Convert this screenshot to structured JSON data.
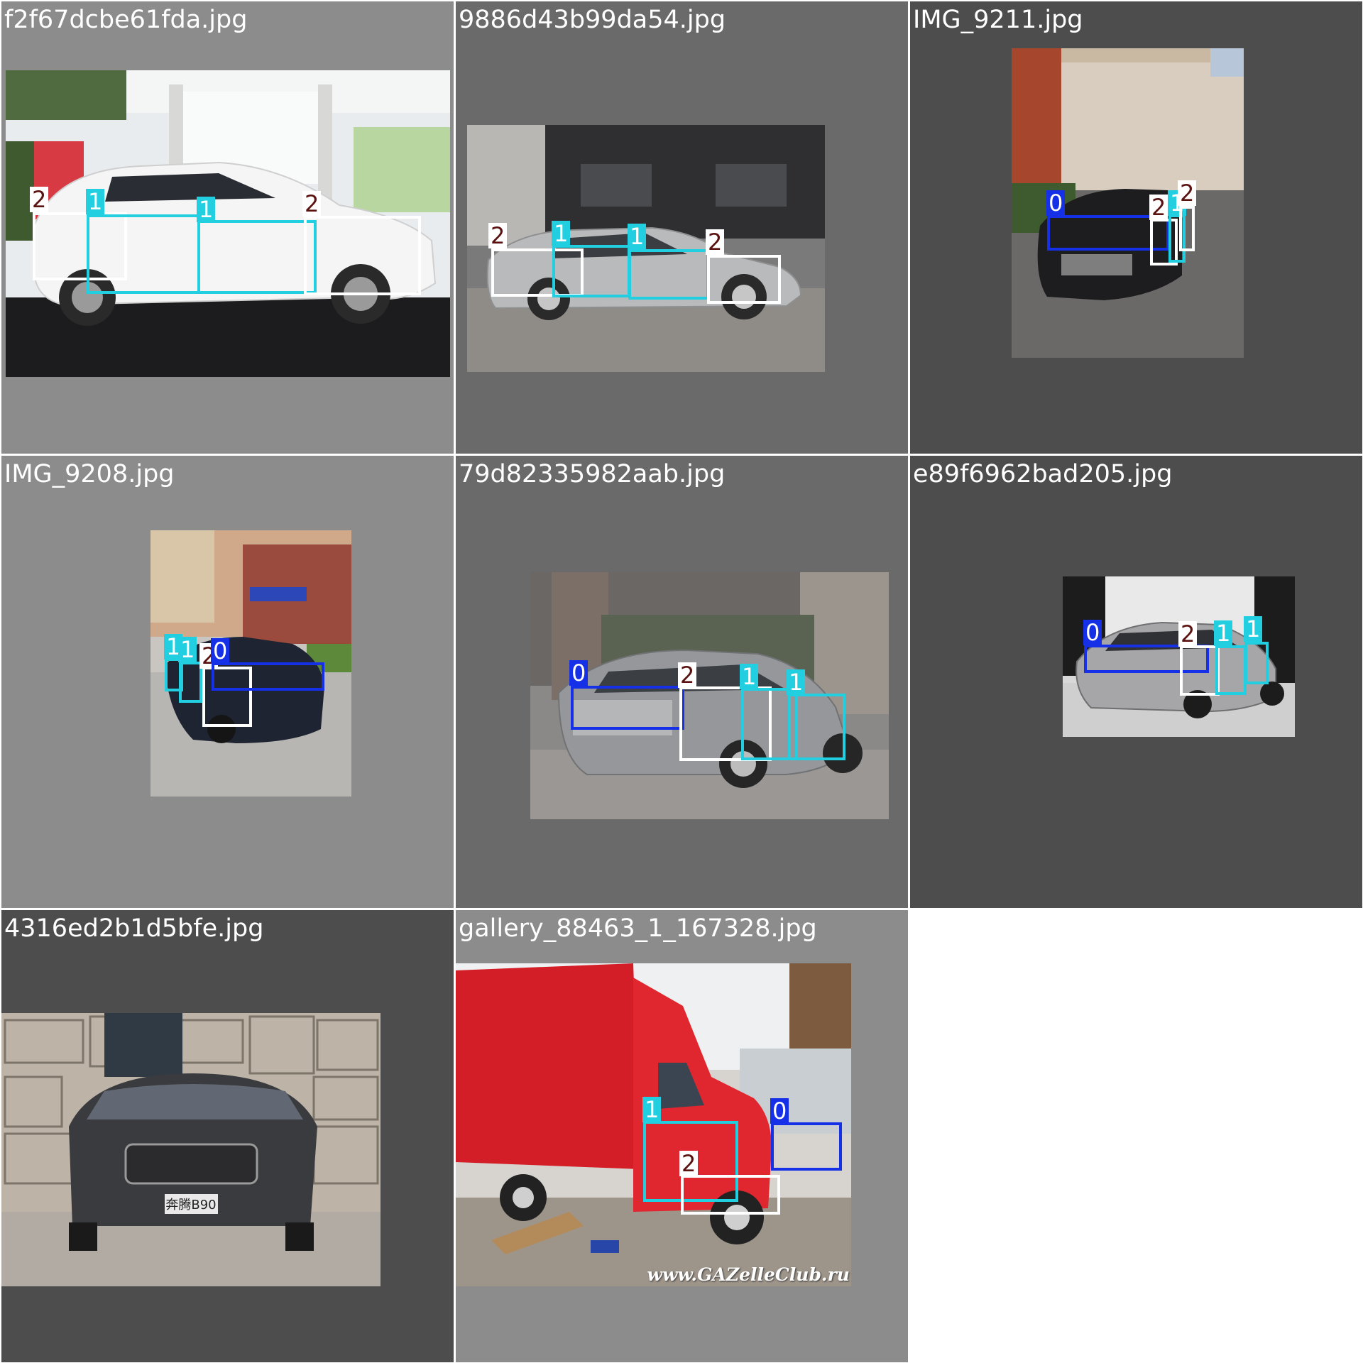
{
  "palette": {
    "class_colors": {
      "0": "#1530e6",
      "1": "#22cfe0",
      "2": "#ffffff"
    },
    "tag_text_colors": {
      "0": "#ffffff",
      "1": "#ffffff",
      "2": "#5a1210"
    },
    "tile_bg_light": "#8c8c8c",
    "tile_bg_mid": "#6a6a6a",
    "tile_bg_dark": "#4d4d4d",
    "empty_cell": "#ffffff",
    "filename_color": "#ffffff"
  },
  "tiles": [
    {
      "filename": "f2f67dcbe61fda.jpg",
      "photo_subject": "white hatchback in showroom",
      "labels": [
        "2",
        "1",
        "1",
        "2"
      ]
    },
    {
      "filename": "9886d43b99da54.jpg",
      "photo_subject": "silver sedan side view",
      "labels": [
        "2",
        "1",
        "1",
        "2"
      ]
    },
    {
      "filename": "IMG_9211.jpg",
      "photo_subject": "dark crossover in courtyard",
      "labels": [
        "0",
        "2",
        "1",
        "2"
      ]
    },
    {
      "filename": "IMG_9208.jpg",
      "photo_subject": "dark sedan near apartment block",
      "labels": [
        "1",
        "1",
        "2",
        "0"
      ]
    },
    {
      "filename": "79d82335982aab.jpg",
      "photo_subject": "grey sedan rear three-quarter",
      "labels": [
        "0",
        "2",
        "1",
        "1"
      ]
    },
    {
      "filename": "e89f6962bad205.jpg",
      "photo_subject": "silver hatchback in studio",
      "labels": [
        "0",
        "2",
        "1",
        "1"
      ]
    },
    {
      "filename": "4316ed2b1d5bfe.jpg",
      "photo_subject": "dark sedan front view",
      "labels": [],
      "plate_text": "奔腾B90"
    },
    {
      "filename": "gallery_88463_1_167328.jpg",
      "photo_subject": "red box truck",
      "labels": [
        "1",
        "0",
        "2"
      ],
      "watermark": "www.GAZelleClub.ru"
    }
  ]
}
